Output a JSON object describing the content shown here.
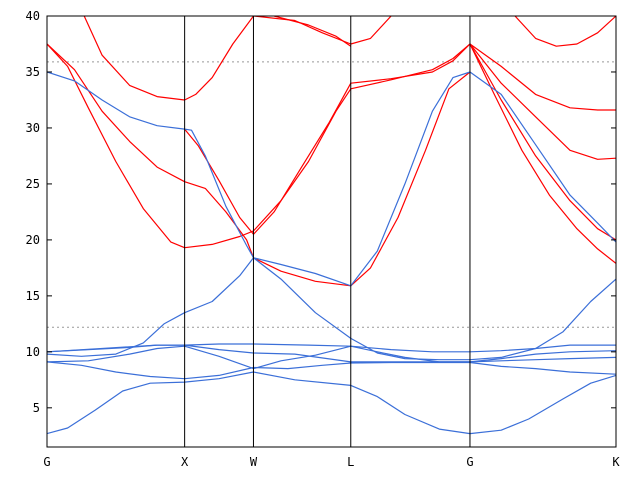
{
  "chart_data": {
    "type": "line",
    "title": "",
    "xlabel": "",
    "ylabel": "",
    "ylim": [
      1.5,
      40
    ],
    "grid": false,
    "legend": "none",
    "x_kpoints": [
      {
        "label": "G",
        "x": 0
      },
      {
        "label": "X",
        "x": 1
      },
      {
        "label": "W",
        "x": 1.5
      },
      {
        "label": "L",
        "x": 2.207
      },
      {
        "label": "G",
        "x": 3.073
      },
      {
        "label": "K",
        "x": 4.134
      }
    ],
    "y_ticks": [
      5,
      10,
      15,
      20,
      25,
      30,
      35,
      40
    ],
    "reference_lines": [
      {
        "y": 12.2,
        "style": "dotted"
      },
      {
        "y": 35.9,
        "style": "dotted"
      }
    ],
    "colors": {
      "series_a": "#ff0000",
      "series_b": "#3b6fd8",
      "axes": "#000000",
      "reference": "#999999"
    },
    "series": [
      {
        "color_key": "series_a",
        "points": [
          [
            0,
            37.5
          ],
          [
            0.2,
            35.2
          ],
          [
            0.4,
            31.5
          ],
          [
            0.6,
            28.8
          ],
          [
            0.8,
            26.5
          ],
          [
            1,
            25.2
          ],
          [
            1.15,
            24.6
          ],
          [
            1.3,
            22.5
          ],
          [
            1.45,
            20.0
          ],
          [
            1.5,
            18.4
          ]
        ]
      },
      {
        "color_key": "series_a",
        "points": [
          [
            0,
            37.5
          ],
          [
            0.15,
            35.5
          ],
          [
            0.3,
            31.8
          ],
          [
            0.5,
            27.0
          ],
          [
            0.7,
            22.8
          ],
          [
            0.9,
            19.8
          ],
          [
            1,
            19.3
          ],
          [
            1.2,
            19.6
          ],
          [
            1.4,
            20.3
          ],
          [
            1.5,
            20.8
          ],
          [
            1.7,
            23.5
          ],
          [
            1.9,
            27.0
          ],
          [
            2.1,
            31.5
          ],
          [
            2.207,
            33.5
          ],
          [
            2.5,
            34.3
          ],
          [
            2.8,
            35.2
          ],
          [
            2.95,
            36.2
          ],
          [
            3.073,
            37.5
          ]
        ]
      },
      {
        "color_key": "series_a",
        "points": [
          [
            0.27,
            40
          ],
          [
            0.4,
            36.5
          ],
          [
            0.6,
            33.8
          ],
          [
            0.8,
            32.8
          ],
          [
            1,
            32.5
          ],
          [
            1.08,
            33.0
          ],
          [
            1.2,
            34.5
          ],
          [
            1.35,
            37.5
          ],
          [
            1.5,
            40
          ]
        ]
      },
      {
        "color_key": "series_a",
        "points": [
          [
            1,
            29.9
          ],
          [
            1.1,
            28.4
          ],
          [
            1.25,
            25.3
          ],
          [
            1.4,
            22.0
          ],
          [
            1.5,
            20.5
          ],
          [
            1.65,
            22.5
          ],
          [
            1.85,
            26.5
          ],
          [
            2.05,
            30.5
          ],
          [
            2.207,
            34.0
          ],
          [
            2.5,
            34.4
          ],
          [
            2.8,
            35.0
          ],
          [
            2.95,
            36.0
          ],
          [
            3.073,
            37.5
          ]
        ]
      },
      {
        "color_key": "series_a",
        "points": [
          [
            1.5,
            18.4
          ],
          [
            1.7,
            17.2
          ],
          [
            1.95,
            16.3
          ],
          [
            2.207,
            15.9
          ],
          [
            2.35,
            17.5
          ],
          [
            2.55,
            22.0
          ],
          [
            2.75,
            28.0
          ],
          [
            2.92,
            33.5
          ],
          [
            3.073,
            35.0
          ]
        ]
      },
      {
        "color_key": "series_a",
        "points": [
          [
            1.5,
            40
          ],
          [
            1.8,
            39.6
          ],
          [
            2.0,
            38.5
          ],
          [
            2.207,
            37.5
          ],
          [
            2.35,
            38.0
          ],
          [
            2.5,
            40
          ]
        ]
      },
      {
        "color_key": "series_a",
        "points": [
          [
            1.65,
            40
          ],
          [
            1.9,
            39.2
          ],
          [
            2.1,
            38.2
          ],
          [
            2.207,
            37.3
          ]
        ]
      },
      {
        "color_key": "series_a",
        "points": [
          [
            3.073,
            37.5
          ],
          [
            3.3,
            34.0
          ],
          [
            3.55,
            31.0
          ],
          [
            3.8,
            28.0
          ],
          [
            4.0,
            27.2
          ],
          [
            4.134,
            27.3
          ]
        ]
      },
      {
        "color_key": "series_a",
        "points": [
          [
            3.073,
            37.5
          ],
          [
            3.3,
            35.5
          ],
          [
            3.55,
            33.0
          ],
          [
            3.8,
            31.8
          ],
          [
            4.0,
            31.6
          ],
          [
            4.134,
            31.6
          ]
        ]
      },
      {
        "color_key": "series_a",
        "points": [
          [
            3.073,
            37.5
          ],
          [
            3.3,
            32.5
          ],
          [
            3.55,
            27.5
          ],
          [
            3.8,
            23.5
          ],
          [
            4.0,
            21.0
          ],
          [
            4.134,
            20.0
          ]
        ]
      },
      {
        "color_key": "series_a",
        "points": [
          [
            3.073,
            37.5
          ],
          [
            3.25,
            33.0
          ],
          [
            3.45,
            28.0
          ],
          [
            3.65,
            24.0
          ],
          [
            3.85,
            21.0
          ],
          [
            4.0,
            19.2
          ],
          [
            4.134,
            17.9
          ]
        ]
      },
      {
        "color_key": "series_a",
        "points": [
          [
            3.4,
            40
          ],
          [
            3.55,
            38.0
          ],
          [
            3.7,
            37.3
          ],
          [
            3.85,
            37.5
          ],
          [
            4.0,
            38.5
          ],
          [
            4.134,
            40
          ]
        ]
      },
      {
        "color_key": "series_b",
        "points": [
          [
            0,
            35.0
          ],
          [
            0.2,
            34.2
          ],
          [
            0.4,
            32.5
          ],
          [
            0.6,
            31.0
          ],
          [
            0.8,
            30.2
          ],
          [
            1,
            29.9
          ],
          [
            1.05,
            29.8
          ],
          [
            1.15,
            27.5
          ],
          [
            1.3,
            23.0
          ],
          [
            1.45,
            19.5
          ],
          [
            1.5,
            18.4
          ],
          [
            1.7,
            17.8
          ],
          [
            1.95,
            17.0
          ],
          [
            2.207,
            15.9
          ],
          [
            2.4,
            19.0
          ],
          [
            2.6,
            25.0
          ],
          [
            2.8,
            31.5
          ],
          [
            2.95,
            34.5
          ],
          [
            3.073,
            35.0
          ],
          [
            3.3,
            33.0
          ],
          [
            3.55,
            28.5
          ],
          [
            3.8,
            24.0
          ],
          [
            4.0,
            21.5
          ],
          [
            4.134,
            19.8
          ]
        ]
      },
      {
        "color_key": "series_b",
        "points": [
          [
            0,
            2.7
          ],
          [
            0.15,
            3.2
          ],
          [
            0.35,
            4.8
          ],
          [
            0.55,
            6.5
          ],
          [
            0.75,
            7.2
          ],
          [
            1,
            7.3
          ],
          [
            1.25,
            7.6
          ],
          [
            1.5,
            8.2
          ],
          [
            1.8,
            7.5
          ],
          [
            2.207,
            7.0
          ],
          [
            2.4,
            6.0
          ],
          [
            2.6,
            4.4
          ],
          [
            2.85,
            3.1
          ],
          [
            3.073,
            2.7
          ],
          [
            3.3,
            3.0
          ],
          [
            3.5,
            4.0
          ],
          [
            3.75,
            5.8
          ],
          [
            3.95,
            7.2
          ],
          [
            4.134,
            7.9
          ]
        ]
      },
      {
        "color_key": "series_b",
        "points": [
          [
            0,
            9.1
          ],
          [
            0.25,
            8.8
          ],
          [
            0.5,
            8.2
          ],
          [
            0.75,
            7.8
          ],
          [
            1,
            7.6
          ],
          [
            1.25,
            7.9
          ],
          [
            1.5,
            8.6
          ],
          [
            1.75,
            8.5
          ],
          [
            2.0,
            8.8
          ],
          [
            2.207,
            9.0
          ],
          [
            2.5,
            9.05
          ],
          [
            2.8,
            9.05
          ],
          [
            3.073,
            9.05
          ],
          [
            3.3,
            8.7
          ],
          [
            3.55,
            8.5
          ],
          [
            3.8,
            8.2
          ],
          [
            4.134,
            8.0
          ]
        ]
      },
      {
        "color_key": "series_b",
        "points": [
          [
            0,
            9.1
          ],
          [
            0.3,
            9.2
          ],
          [
            0.6,
            9.8
          ],
          [
            0.8,
            10.3
          ],
          [
            1,
            10.5
          ],
          [
            1.25,
            9.6
          ],
          [
            1.5,
            8.5
          ],
          [
            1.7,
            9.2
          ],
          [
            1.95,
            9.7
          ],
          [
            2.207,
            10.5
          ],
          [
            2.4,
            10.0
          ],
          [
            2.6,
            9.5
          ],
          [
            2.85,
            9.1
          ],
          [
            3.073,
            9.1
          ],
          [
            3.3,
            9.2
          ],
          [
            3.55,
            9.3
          ],
          [
            3.8,
            9.4
          ],
          [
            4.134,
            9.5
          ]
        ]
      },
      {
        "color_key": "series_b",
        "points": [
          [
            0,
            10.0
          ],
          [
            0.3,
            10.2
          ],
          [
            0.6,
            10.4
          ],
          [
            0.8,
            10.6
          ],
          [
            1,
            10.6
          ],
          [
            1.25,
            10.2
          ],
          [
            1.5,
            9.9
          ],
          [
            1.8,
            9.8
          ],
          [
            2.207,
            9.1
          ],
          [
            2.4,
            9.1
          ],
          [
            2.7,
            9.1
          ],
          [
            3.073,
            9.1
          ],
          [
            3.3,
            9.4
          ],
          [
            3.55,
            9.8
          ],
          [
            3.8,
            10.0
          ],
          [
            4.134,
            10.1
          ]
        ]
      },
      {
        "color_key": "series_b",
        "points": [
          [
            0,
            10.0
          ],
          [
            0.4,
            10.3
          ],
          [
            0.8,
            10.6
          ],
          [
            1,
            10.6
          ],
          [
            1.25,
            10.7
          ],
          [
            1.5,
            10.7
          ],
          [
            1.9,
            10.6
          ],
          [
            2.207,
            10.5
          ],
          [
            2.5,
            10.2
          ],
          [
            2.8,
            10.0
          ],
          [
            3.073,
            10.0
          ],
          [
            3.3,
            10.1
          ],
          [
            3.55,
            10.3
          ],
          [
            3.8,
            10.6
          ],
          [
            4.134,
            10.6
          ]
        ]
      },
      {
        "color_key": "series_b",
        "points": [
          [
            0,
            9.8
          ],
          [
            0.25,
            9.6
          ],
          [
            0.5,
            9.8
          ],
          [
            0.7,
            10.8
          ],
          [
            0.85,
            12.5
          ],
          [
            1,
            13.5
          ],
          [
            1.2,
            14.5
          ],
          [
            1.4,
            16.8
          ],
          [
            1.5,
            18.4
          ],
          [
            1.7,
            16.5
          ],
          [
            1.95,
            13.5
          ],
          [
            2.207,
            11.2
          ],
          [
            2.4,
            9.9
          ],
          [
            2.6,
            9.4
          ],
          [
            2.85,
            9.3
          ],
          [
            3.073,
            9.3
          ],
          [
            3.3,
            9.5
          ],
          [
            3.55,
            10.3
          ],
          [
            3.75,
            11.8
          ],
          [
            3.95,
            14.5
          ],
          [
            4.134,
            16.5
          ]
        ]
      }
    ]
  }
}
